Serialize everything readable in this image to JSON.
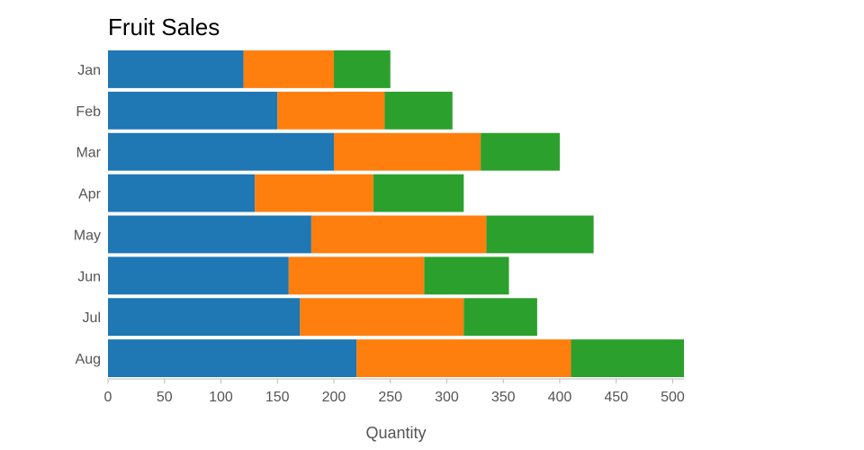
{
  "chart_data": {
    "type": "bar",
    "orientation": "horizontal",
    "stacked": true,
    "title": "Fruit Sales",
    "xlabel": "Quantity",
    "ylabel": "",
    "categories": [
      "Jan",
      "Feb",
      "Mar",
      "Apr",
      "May",
      "Jun",
      "Jul",
      "Aug"
    ],
    "series": [
      {
        "color": "#1f77b4",
        "values": [
          120,
          150,
          200,
          130,
          180,
          160,
          170,
          220
        ]
      },
      {
        "color": "#ff7f0e",
        "values": [
          80,
          95,
          130,
          105,
          155,
          120,
          145,
          190
        ]
      },
      {
        "color": "#2ca02c",
        "values": [
          50,
          60,
          70,
          80,
          95,
          75,
          65,
          100
        ]
      }
    ],
    "xlim": [
      0,
      510
    ],
    "xticks": [
      0,
      50,
      100,
      150,
      200,
      250,
      300,
      350,
      400,
      450,
      500
    ],
    "grid": false,
    "legend": "none"
  }
}
